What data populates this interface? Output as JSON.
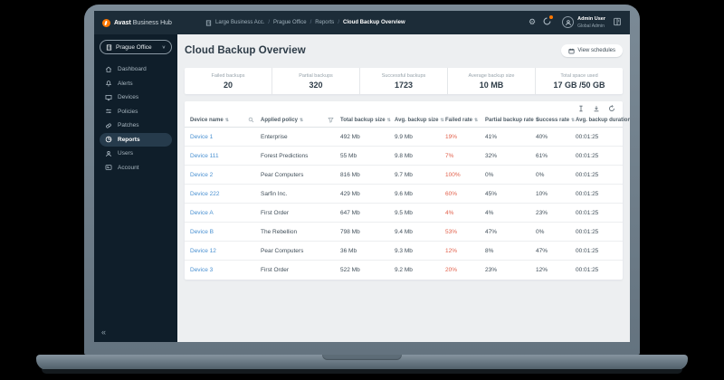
{
  "topbar": {
    "brand_bold": "Avast",
    "brand_rest": " Business Hub",
    "breadcrumb": [
      "Large Business Acc.",
      "Prague Office",
      "Reports",
      "Cloud Backup Overview"
    ],
    "user": {
      "name": "Admin User",
      "role": "Global Admin"
    }
  },
  "icons": {
    "slash": "/",
    "gear": "⚙",
    "chevron_down": "∨",
    "collapse": "«",
    "sort": "⇅"
  },
  "sidebar": {
    "site_selector": "Prague Office",
    "items": [
      {
        "label": "Dashboard"
      },
      {
        "label": "Alerts"
      },
      {
        "label": "Devices"
      },
      {
        "label": "Policies"
      },
      {
        "label": "Patches"
      },
      {
        "label": "Reports"
      },
      {
        "label": "Users"
      },
      {
        "label": "Account"
      }
    ],
    "active_item": "Reports"
  },
  "main": {
    "title": "Cloud Backup Overview",
    "view_schedules_label": "View schedules",
    "stats": [
      {
        "label": "Failed backups",
        "value": "20"
      },
      {
        "label": "Partial backups",
        "value": "320"
      },
      {
        "label": "Successful backups",
        "value": "1723"
      },
      {
        "label": "Average backup size",
        "value": "10 MB"
      },
      {
        "label": "Total space used",
        "value": "17 GB /50 GB"
      }
    ],
    "table": {
      "columns": [
        "Device name",
        "Applied policy",
        "Total backup size",
        "Avg. backup size",
        "Failed rate",
        "Partial backup rate",
        "Success rate",
        "Avg. backup duration"
      ],
      "rows": [
        {
          "device": "Device 1",
          "policy": "Enterprise",
          "total": "492 Mb",
          "avg": "9.9 Mb",
          "failed": "19%",
          "partial": "41%",
          "success": "40%",
          "duration": "00:01:25"
        },
        {
          "device": "Device 111",
          "policy": "Forest Predictions",
          "total": "55 Mb",
          "avg": "9.8 Mb",
          "failed": "7%",
          "partial": "32%",
          "success": "61%",
          "duration": "00:01:25"
        },
        {
          "device": "Device 2",
          "policy": "Pear Computers",
          "total": "816 Mb",
          "avg": "9.7 Mb",
          "failed": "100%",
          "partial": "0%",
          "success": "0%",
          "duration": "00:01:25"
        },
        {
          "device": "Device 222",
          "policy": "Sarfin Inc.",
          "total": "429 Mb",
          "avg": "9.6 Mb",
          "failed": "60%",
          "partial": "45%",
          "success": "10%",
          "duration": "00:01:25"
        },
        {
          "device": "Device A",
          "policy": "First Order",
          "total": "647 Mb",
          "avg": "9.5 Mb",
          "failed": "4%",
          "partial": "4%",
          "success": "23%",
          "duration": "00:01:25"
        },
        {
          "device": "Device B",
          "policy": "The Rebellion",
          "total": "798 Mb",
          "avg": "9.4 Mb",
          "failed": "53%",
          "partial": "47%",
          "success": "0%",
          "duration": "00:01:25"
        },
        {
          "device": "Device 12",
          "policy": "Pear Computers",
          "total": "36 Mb",
          "avg": "9.3 Mb",
          "failed": "12%",
          "partial": "8%",
          "success": "47%",
          "duration": "00:01:25"
        },
        {
          "device": "Device 3",
          "policy": "First Order",
          "total": "522 Mb",
          "avg": "9.2 Mb",
          "failed": "20%",
          "partial": "23%",
          "success": "12%",
          "duration": "00:01:25"
        }
      ]
    },
    "colors": {
      "accent_orange": "#ff7800",
      "link_blue": "#4990d1",
      "failed_red": "#e2614c",
      "sidebar_navy": "#0f1e2a",
      "topbar_navy": "#1c2c38"
    }
  }
}
